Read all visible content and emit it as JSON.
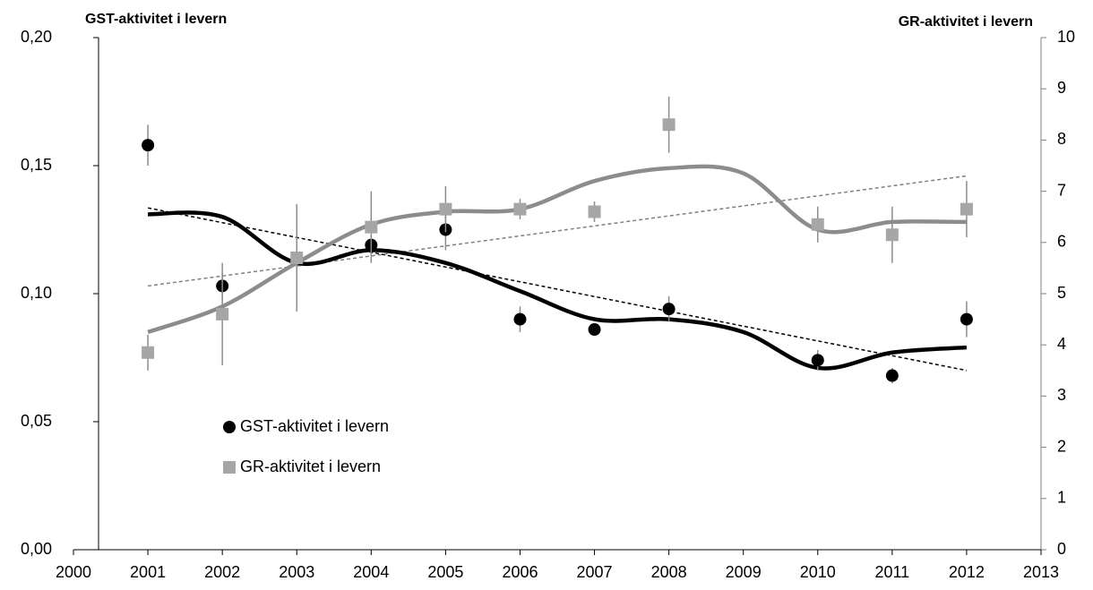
{
  "chart_data": {
    "type": "line",
    "y_label": "GST-aktivitet i levern",
    "y2_label": "GR-aktivitet i levern",
    "x": [
      2001,
      2002,
      2003,
      2004,
      2005,
      2006,
      2007,
      2008,
      2009,
      2010,
      2011,
      2012
    ],
    "xlim": [
      2000,
      2013
    ],
    "xticks": [
      2000,
      2001,
      2002,
      2003,
      2004,
      2005,
      2006,
      2007,
      2008,
      2009,
      2010,
      2011,
      2012,
      2013
    ],
    "ylim": [
      0,
      0.2
    ],
    "yticks": [
      {
        "value": 0,
        "label": "0,00"
      },
      {
        "value": 0.05,
        "label": "0,05"
      },
      {
        "value": 0.1,
        "label": "0,10"
      },
      {
        "value": 0.15,
        "label": "0,15"
      },
      {
        "value": 0.2,
        "label": "0,20"
      }
    ],
    "y2lim": [
      0,
      10
    ],
    "y2ticks": [
      0,
      1,
      2,
      3,
      4,
      5,
      6,
      7,
      8,
      9,
      10
    ],
    "series": [
      {
        "name": "GST-aktivitet i levern",
        "color": "#000000",
        "marker": "circle",
        "values": [
          0.158,
          0.103,
          null,
          0.119,
          0.125,
          0.09,
          0.086,
          0.094,
          null,
          0.074,
          0.068,
          0.09
        ],
        "errors": [
          0.008,
          0.005,
          null,
          0.004,
          0.008,
          0.005,
          0.002,
          0.005,
          null,
          0.004,
          0.003,
          0.007
        ]
      },
      {
        "name": "GR-aktivitet i levern",
        "color": "#a6a6a6",
        "marker": "square",
        "axis": "y2",
        "values": [
          3.85,
          4.6,
          5.7,
          6.3,
          6.65,
          6.65,
          6.6,
          8.3,
          null,
          6.35,
          6.15,
          6.65
        ],
        "errors": [
          0.35,
          1.0,
          1.05,
          0.7,
          0.45,
          0.2,
          0.2,
          0.55,
          null,
          0.35,
          0.55,
          0.55
        ]
      }
    ],
    "smooth": [
      {
        "color": "#000000",
        "values": [
          0.131,
          0.13,
          0.112,
          0.117,
          0.112,
          0.101,
          0.09,
          0.09,
          0.085,
          0.071,
          0.077,
          0.079
        ]
      },
      {
        "color": "#8c8c8c",
        "axis": "y2",
        "values": [
          4.25,
          4.75,
          5.6,
          6.35,
          6.6,
          6.65,
          7.2,
          7.45,
          7.35,
          6.25,
          6.4,
          6.4
        ]
      }
    ],
    "trend": [
      {
        "color": "#000000",
        "x": [
          2001,
          2012
        ],
        "values": [
          0.1335,
          0.07
        ]
      },
      {
        "color": "#808080",
        "axis": "y2",
        "x": [
          2001,
          2012
        ],
        "values": [
          5.15,
          7.3
        ]
      }
    ]
  }
}
